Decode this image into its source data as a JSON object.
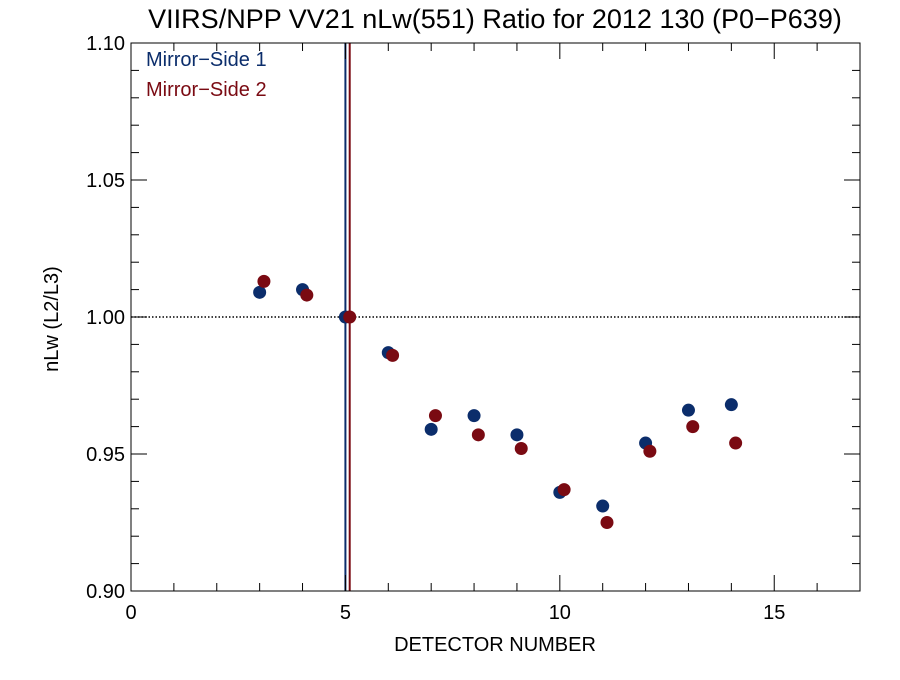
{
  "chart_data": {
    "type": "scatter",
    "title": "VIIRS/NPP VV21 nLw(551) Ratio for 2012 130 (P0−P639)",
    "xlabel": "DETECTOR NUMBER",
    "ylabel": "nLw (L2/L3)",
    "xlim": [
      0,
      17
    ],
    "ylim": [
      0.9,
      1.1
    ],
    "x_ticks": [
      0,
      5,
      10,
      15
    ],
    "x_tick_labels": [
      "0",
      "5",
      "10",
      "15"
    ],
    "x_minor_step": 1,
    "y_ticks": [
      0.9,
      0.95,
      1.0,
      1.05,
      1.1
    ],
    "y_tick_labels": [
      "0.90",
      "0.95",
      "1.00",
      "1.05",
      "1.10"
    ],
    "y_minor_step": 0.01,
    "reference_line": {
      "y": 1.0,
      "style": "dotted"
    },
    "vertical_lines": [
      {
        "x": 5.0,
        "color": "#0b2d6b"
      },
      {
        "x": 5.1,
        "color": "#7a0a12"
      }
    ],
    "legend_position": "top-left",
    "grid": false,
    "series": [
      {
        "name": "Mirror−Side 1",
        "color": "#0b2d6b",
        "x": [
          3,
          4,
          5,
          6,
          7,
          8,
          9,
          10,
          11,
          12,
          13,
          14
        ],
        "y": [
          1.009,
          1.01,
          1.0,
          0.987,
          0.959,
          0.964,
          0.957,
          0.936,
          0.931,
          0.954,
          0.966,
          0.968
        ]
      },
      {
        "name": "Mirror−Side 2",
        "color": "#7a0a12",
        "x": [
          3.1,
          4.1,
          5.1,
          6.1,
          7.1,
          8.1,
          9.1,
          10.1,
          11.1,
          12.1,
          13.1,
          14.1
        ],
        "y": [
          1.013,
          1.008,
          1.0,
          0.986,
          0.964,
          0.957,
          0.952,
          0.937,
          0.925,
          0.951,
          0.96,
          0.954
        ]
      }
    ]
  }
}
